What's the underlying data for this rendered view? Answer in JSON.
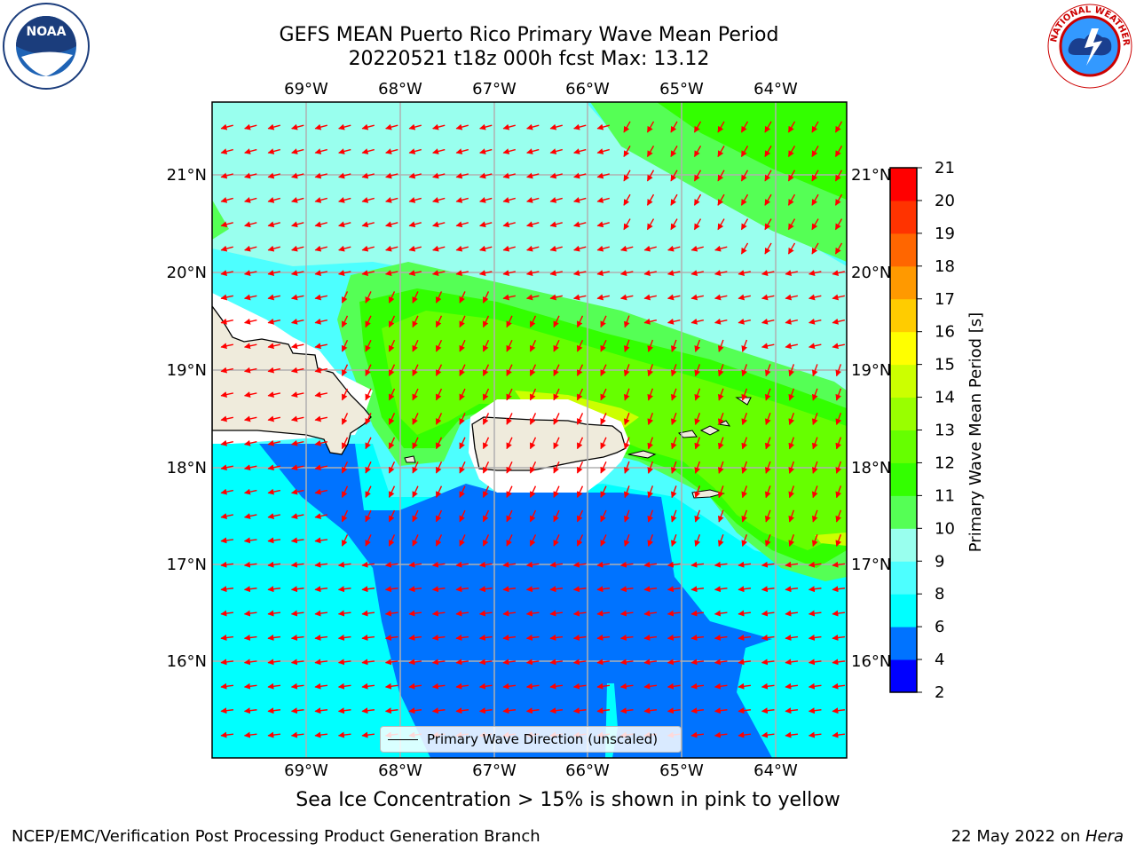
{
  "title_line1": "GEFS MEAN Puerto Rico Primary Wave Mean Period",
  "title_line2": "20220521 t18z 000h fcst   Max: 13.12",
  "logos": {
    "left_text": "NOAA",
    "right_text": "NATIONAL WEATHER SERVICE"
  },
  "map": {
    "lon_labels": [
      "69°W",
      "68°W",
      "67°W",
      "66°W",
      "65°W",
      "64°W"
    ],
    "lat_labels": [
      "21°N",
      "20°N",
      "19°N",
      "18°N",
      "17°N",
      "16°N"
    ],
    "legend_label": "Primary Wave Direction (unscaled)",
    "vector_color": "#ff0000",
    "land_color": "#efebdc"
  },
  "colorbar": {
    "label": "Primary Wave Mean Period [s]",
    "ticks": [
      "2",
      "4",
      "6",
      "8",
      "9",
      "10",
      "11",
      "12",
      "13",
      "14",
      "15",
      "16",
      "17",
      "18",
      "19",
      "20",
      "21"
    ],
    "colors": [
      "#0000ff",
      "#0073ff",
      "#00ffff",
      "#4dffff",
      "#99ffee",
      "#55ff55",
      "#33ff00",
      "#66ff00",
      "#99ff00",
      "#ccff00",
      "#ffff00",
      "#ffcc00",
      "#ff9900",
      "#ff6600",
      "#ff3300",
      "#ff0000"
    ]
  },
  "note": "Sea Ice Concentration > 15% is shown in pink to yellow",
  "footer_left": "NCEP/EMC/Verification Post Processing Product Generation Branch",
  "footer_right_prefix": "22 May 2022 on ",
  "footer_right_italic": "Hera"
}
